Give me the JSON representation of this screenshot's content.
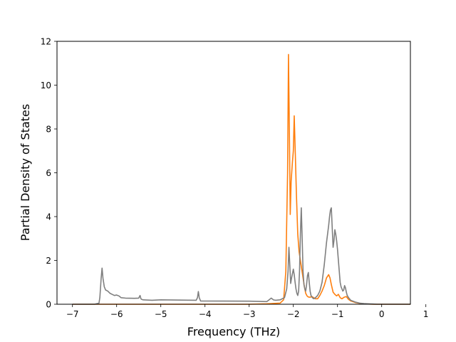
{
  "chart_data": {
    "type": "line",
    "xlabel": "Frequency (THz)",
    "ylabel": "Partial Density of States",
    "xlim": [
      -7.35,
      0.65
    ],
    "ylim": [
      0,
      12
    ],
    "xticks": [
      -7,
      -6,
      -5,
      -4,
      -3,
      -2,
      -1,
      0,
      1
    ],
    "yticks": [
      0,
      2,
      4,
      6,
      8,
      10,
      12
    ],
    "grid": false,
    "legend": "none",
    "series": [
      {
        "color": "#ff7f0e",
        "x": [
          -7.0,
          -6.4,
          -3.0,
          -2.6,
          -2.3,
          -2.22,
          -2.17,
          -2.13,
          -2.11,
          -2.09,
          -2.07,
          -2.05,
          -2.02,
          -2.0,
          -1.98,
          -1.96,
          -1.93,
          -1.9,
          -1.87,
          -1.84,
          -1.81,
          -1.78,
          -1.75,
          -1.72,
          -1.69,
          -1.66,
          -1.62,
          -1.58,
          -1.54,
          -1.5,
          -1.45,
          -1.4,
          -1.35,
          -1.3,
          -1.25,
          -1.2,
          -1.17,
          -1.14,
          -1.1,
          -1.06,
          -1.02,
          -0.98,
          -0.94,
          -0.9,
          -0.85,
          -0.8,
          -0.75,
          -0.7,
          -0.6,
          -0.5,
          -0.4,
          -0.3,
          -0.2,
          -0.1,
          0.0,
          0.2,
          0.4,
          0.65
        ],
        "y": [
          0,
          0,
          0,
          0.02,
          0.05,
          0.2,
          1.5,
          6.0,
          11.4,
          8.0,
          4.1,
          5.6,
          6.5,
          7.0,
          8.6,
          7.2,
          5.0,
          3.2,
          2.4,
          2.0,
          1.6,
          1.2,
          0.8,
          0.5,
          0.38,
          0.33,
          0.32,
          0.35,
          0.3,
          0.25,
          0.25,
          0.4,
          0.6,
          0.85,
          1.2,
          1.35,
          1.2,
          0.9,
          0.55,
          0.45,
          0.38,
          0.45,
          0.3,
          0.25,
          0.32,
          0.35,
          0.22,
          0.15,
          0.08,
          0.04,
          0.02,
          0.01,
          0.0,
          0.0,
          0.0,
          0.0,
          0.0,
          0.0
        ]
      },
      {
        "color": "#7f7f7f",
        "x": [
          -7.0,
          -6.5,
          -6.4,
          -6.38,
          -6.35,
          -6.33,
          -6.31,
          -6.28,
          -6.25,
          -6.2,
          -6.15,
          -6.1,
          -6.05,
          -6.0,
          -5.95,
          -5.9,
          -5.8,
          -5.6,
          -5.5,
          -5.47,
          -5.45,
          -5.43,
          -5.4,
          -5.2,
          -5.0,
          -4.2,
          -4.17,
          -4.15,
          -4.13,
          -4.1,
          -3.0,
          -2.6,
          -2.55,
          -2.5,
          -2.45,
          -2.4,
          -2.3,
          -2.2,
          -2.15,
          -2.12,
          -2.1,
          -2.08,
          -2.06,
          -2.04,
          -2.02,
          -2.0,
          -1.98,
          -1.96,
          -1.94,
          -1.92,
          -1.9,
          -1.88,
          -1.86,
          -1.84,
          -1.82,
          -1.8,
          -1.78,
          -1.76,
          -1.74,
          -1.72,
          -1.7,
          -1.68,
          -1.66,
          -1.64,
          -1.62,
          -1.6,
          -1.57,
          -1.54,
          -1.5,
          -1.45,
          -1.4,
          -1.35,
          -1.3,
          -1.25,
          -1.2,
          -1.18,
          -1.16,
          -1.14,
          -1.12,
          -1.1,
          -1.08,
          -1.06,
          -1.04,
          -1.02,
          -1.0,
          -0.98,
          -0.96,
          -0.94,
          -0.92,
          -0.9,
          -0.88,
          -0.86,
          -0.84,
          -0.82,
          -0.8,
          -0.78,
          -0.75,
          -0.7,
          -0.6,
          -0.5,
          -0.4,
          -0.3,
          -0.2,
          -0.1,
          0.0,
          0.2,
          0.4,
          0.65
        ],
        "y": [
          0,
          0,
          0.05,
          0.3,
          1.2,
          1.65,
          1.2,
          0.8,
          0.65,
          0.6,
          0.5,
          0.45,
          0.4,
          0.42,
          0.38,
          0.3,
          0.28,
          0.27,
          0.28,
          0.4,
          0.25,
          0.22,
          0.2,
          0.18,
          0.2,
          0.18,
          0.3,
          0.58,
          0.3,
          0.15,
          0.14,
          0.12,
          0.2,
          0.28,
          0.2,
          0.18,
          0.2,
          0.3,
          0.7,
          1.5,
          2.6,
          1.8,
          0.95,
          1.2,
          1.4,
          1.6,
          1.35,
          1.0,
          0.7,
          0.5,
          0.4,
          0.6,
          1.5,
          3.2,
          4.4,
          3.0,
          1.5,
          0.9,
          0.7,
          0.6,
          0.9,
          1.3,
          1.45,
          1.0,
          0.6,
          0.4,
          0.3,
          0.25,
          0.3,
          0.4,
          0.6,
          1.0,
          1.8,
          2.8,
          3.6,
          4.0,
          4.3,
          4.4,
          3.5,
          2.6,
          2.9,
          3.4,
          3.2,
          2.9,
          2.5,
          2.0,
          1.5,
          1.0,
          0.8,
          0.7,
          0.6,
          0.65,
          0.85,
          0.75,
          0.55,
          0.4,
          0.3,
          0.18,
          0.1,
          0.05,
          0.03,
          0.02,
          0.01,
          0.0,
          0.0,
          0.0,
          0.0,
          0.0
        ]
      }
    ]
  }
}
